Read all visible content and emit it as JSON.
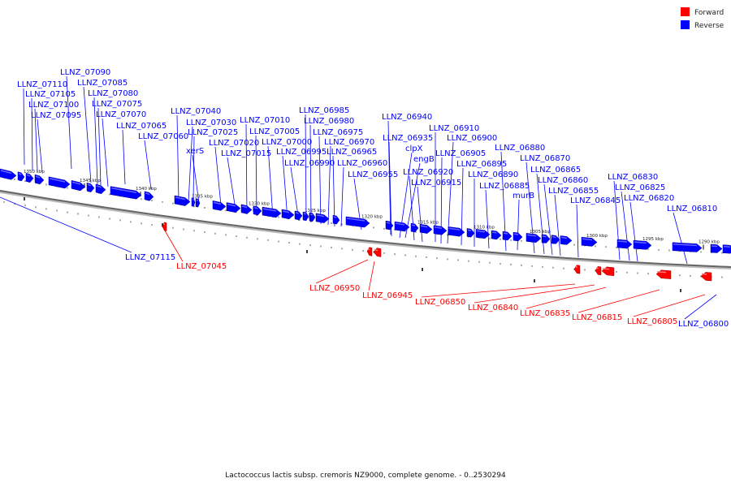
{
  "caption": "Lactococcus lactis subsp. cremoris NZ9000, complete genome. - 0..2530294",
  "colors": {
    "forward": "#ff0000",
    "reverse": "#0000ff",
    "line": "#777777"
  },
  "legend": [
    {
      "label": "Forward",
      "color": "#ff0000"
    },
    {
      "label": "Reverse",
      "color": "#0000ff"
    }
  ],
  "kbp_marks": [
    "1350 kbp",
    "1345 kbp",
    "1340 kbp",
    "1335 kbp",
    "1330 kbp",
    "1325 kbp",
    "1320 kbp",
    "1315 kbp",
    "1310 kbp",
    "1305 kbp",
    "1300 kbp",
    "1295 kbp",
    "1290 kbp"
  ],
  "reverse_labels": [
    "LLNZ_07090",
    "LLNZ_07110",
    "LLNZ_07085",
    "LLNZ_07105",
    "LLNZ_07080",
    "LLNZ_07100",
    "LLNZ_07075",
    "LLNZ_07095",
    "LLNZ_07070",
    "LLNZ_07065",
    "LLNZ_07060",
    "LLNZ_07040",
    "LLNZ_07030",
    "LLNZ_07025",
    "xerS",
    "LLNZ_07020",
    "LLNZ_07015",
    "LLNZ_07010",
    "LLNZ_07005",
    "LLNZ_07000",
    "LLNZ_06995",
    "LLNZ_06990",
    "LLNZ_06985",
    "LLNZ_06980",
    "LLNZ_06975",
    "LLNZ_06970",
    "LLNZ_06965",
    "LLNZ_06960",
    "LLNZ_06955",
    "LLNZ_06940",
    "LLNZ_06935",
    "clpX",
    "engB",
    "LLNZ_06920",
    "LLNZ_06915",
    "LLNZ_06910",
    "LLNZ_06900",
    "LLNZ_06905",
    "LLNZ_06895",
    "LLNZ_06890",
    "LLNZ_06885",
    "murB",
    "LLNZ_06880",
    "LLNZ_06870",
    "LLNZ_06865",
    "LLNZ_06860",
    "LLNZ_06855",
    "LLNZ_06845",
    "LLNZ_06830",
    "LLNZ_06825",
    "LLNZ_06820",
    "LLNZ_06810",
    "LLNZ_07115",
    "LLNZ_06800"
  ],
  "forward_labels": [
    "LLNZ_07045",
    "LLNZ_06950",
    "LLNZ_06945",
    "LLNZ_06850",
    "LLNZ_06840",
    "LLNZ_06835",
    "LLNZ_06815",
    "LLNZ_06805"
  ]
}
